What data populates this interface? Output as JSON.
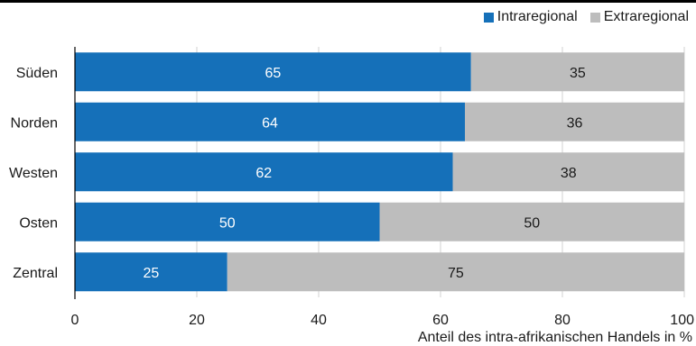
{
  "colors": {
    "intraregional": "#1570b9",
    "extraregional": "#bdbdbd",
    "axis": "#000000",
    "grid": "#d0d0d0"
  },
  "legend": [
    {
      "label": "Intraregional",
      "color": "#1570b9"
    },
    {
      "label": "Extraregional",
      "color": "#bdbdbd"
    }
  ],
  "chart_data": {
    "type": "bar",
    "orientation": "horizontal",
    "stacked": true,
    "categories": [
      "Süden",
      "Norden",
      "Westen",
      "Osten",
      "Zentral"
    ],
    "series": [
      {
        "name": "Intraregional",
        "values": [
          65,
          64,
          62,
          50,
          25
        ]
      },
      {
        "name": "Extraregional",
        "values": [
          35,
          36,
          38,
          50,
          75
        ]
      }
    ],
    "xlim": [
      0,
      100
    ],
    "xticks": [
      0,
      20,
      40,
      60,
      80,
      100
    ],
    "xlabel": "Anteil des intra-afrikanischen Handels in %",
    "legend_position": "top-right",
    "grid": "vertical"
  }
}
